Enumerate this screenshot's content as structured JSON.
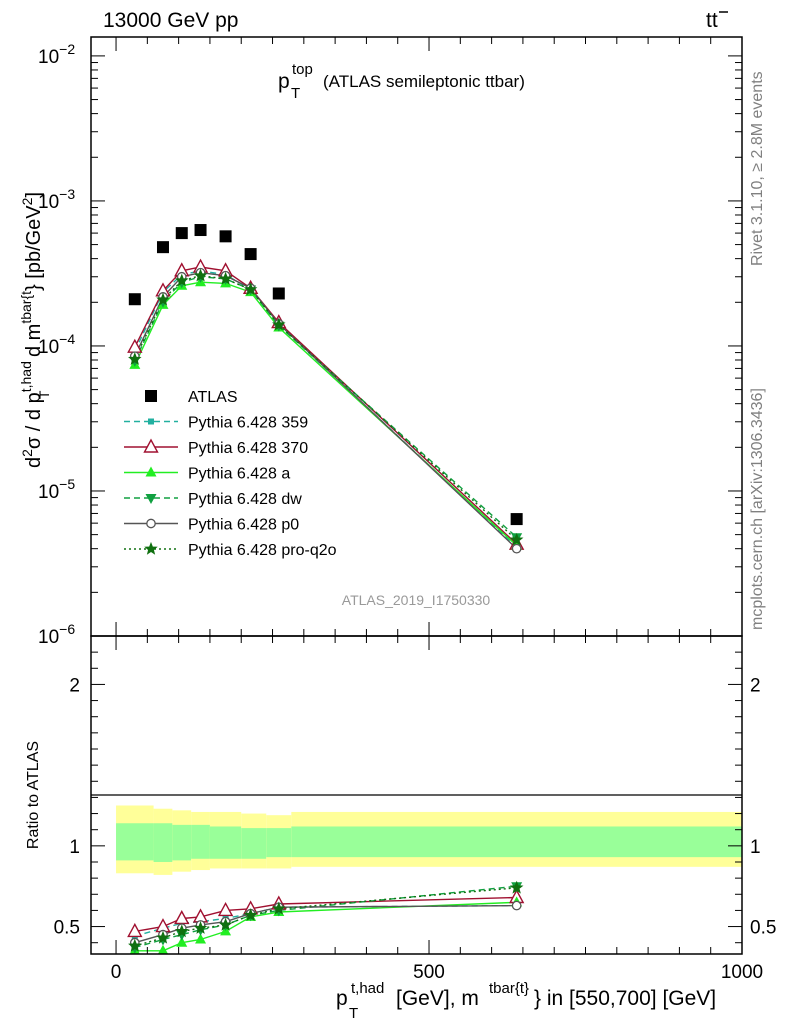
{
  "header": {
    "left": "13000 GeV pp",
    "right_base": "t",
    "right_bar": "t"
  },
  "side_labels": {
    "rivet": "Rivet 3.1.10, ≥ 2.8M events",
    "mcplots": "mcplots.cern.ch [arXiv:1306.3436]"
  },
  "colors": {
    "band_outer": "#ffff99",
    "band_inner": "#99ff99",
    "atlas": "#000000",
    "p359": "#22b0a0",
    "p370": "#a01030",
    "pa": "#22ee22",
    "pdw": "#10a040",
    "pp0": "#555555",
    "pproq2o": "#107010"
  },
  "chart_data": [
    {
      "type": "scatter",
      "panel": "main",
      "title_main": "p",
      "title_sup": "top",
      "title_sub": "T",
      "title_rest": "(ATLAS semileptonic ttbar)",
      "watermark": "ATLAS_2019_I1750330",
      "ylabel": "d²σ / d p_T^{t,had} d m^{tbar{t}} [pb/GeV²]",
      "yscale": "log",
      "ylim": [
        1e-06,
        0.0135
      ],
      "xlim": [
        -40,
        1000
      ],
      "y_tick_labels": [
        {
          "base": "10",
          "exp": "−2",
          "v": 0.01
        },
        {
          "base": "10",
          "exp": "−3",
          "v": 0.001
        },
        {
          "base": "10",
          "exp": "−4",
          "v": 0.0001
        },
        {
          "base": "10",
          "exp": "−5",
          "v": 1e-05
        },
        {
          "base": "10",
          "exp": "−6",
          "v": 1e-06
        }
      ],
      "legend_position": "center-left",
      "x": [
        30,
        75,
        105,
        135,
        175,
        215,
        260,
        640
      ],
      "series": [
        {
          "name": "ATLAS",
          "key": "atlas",
          "marker": "square",
          "values": [
            0.00021,
            0.00048,
            0.0006,
            0.00063,
            0.00057,
            0.00043,
            0.00023,
            6.4e-06
          ]
        },
        {
          "name": "Pythia 6.428 359",
          "key": "p359",
          "marker": "smallsquare",
          "dash": "6,4",
          "values": [
            9.2e-05,
            0.000235,
            0.00031,
            0.00033,
            0.00031,
            0.000245,
            0.00014,
            4.1e-06
          ]
        },
        {
          "name": "Pythia 6.428 370",
          "key": "p370",
          "marker": "triangle-open",
          "dash": "",
          "values": [
            9.8e-05,
            0.00024,
            0.00033,
            0.00035,
            0.00033,
            0.00025,
            0.000145,
            4.3e-06
          ]
        },
        {
          "name": "Pythia 6.428 a",
          "key": "pa",
          "marker": "triangle-filled",
          "dash": "",
          "values": [
            7.4e-05,
            0.000192,
            0.00026,
            0.000275,
            0.00027,
            0.000235,
            0.000134,
            4.2e-06
          ]
        },
        {
          "name": "Pythia 6.428 dw",
          "key": "pdw",
          "marker": "triangle-down",
          "dash": "6,4",
          "values": [
            7.9e-05,
            0.000202,
            0.000275,
            0.0003,
            0.00029,
            0.000245,
            0.000138,
            4.8e-06
          ]
        },
        {
          "name": "Pythia 6.428 p0",
          "key": "pp0",
          "marker": "circle-open",
          "dash": "",
          "values": [
            8.5e-05,
            0.000218,
            0.0003,
            0.00032,
            0.000305,
            0.00025,
            0.000142,
            4e-06
          ]
        },
        {
          "name": "Pythia 6.428 pro-q2o",
          "key": "pproq2o",
          "marker": "star",
          "dash": "2,3",
          "values": [
            8.1e-05,
            0.000208,
            0.000282,
            0.000305,
            0.00029,
            0.000245,
            0.00014,
            4.6e-06
          ]
        }
      ]
    },
    {
      "type": "line",
      "panel": "ratio",
      "ylabel": "Ratio to ATLAS",
      "ylim": [
        0.33,
        2.3
      ],
      "xlim": [
        -40,
        1000
      ],
      "y_tick_labels": [
        {
          "label": "0.5",
          "v": 0.5
        },
        {
          "label": "1",
          "v": 1
        },
        {
          "label": "2",
          "v": 2
        }
      ],
      "x_tick_labels": [
        {
          "label": "0",
          "v": 0
        },
        {
          "label": "500",
          "v": 500
        },
        {
          "label": "1000",
          "v": 1000
        }
      ],
      "xlabel_main": "p",
      "xlabel_sup": "t,had",
      "xlabel_sub": "T",
      "xlabel_mid": "[GeV], m",
      "xlabel_sup2": "tbar{t}",
      "xlabel_end": "} in [550,700] [GeV]",
      "bands": {
        "edges": [
          0,
          60,
          90,
          120,
          150,
          200,
          240,
          280,
          1000
        ],
        "outer_lo": [
          0.83,
          0.82,
          0.84,
          0.85,
          0.86,
          0.86,
          0.86,
          0.87
        ],
        "outer_hi": [
          1.25,
          1.23,
          1.22,
          1.21,
          1.21,
          1.2,
          1.19,
          1.21
        ],
        "inner_lo": [
          0.91,
          0.9,
          0.91,
          0.92,
          0.92,
          0.92,
          0.93,
          0.93
        ],
        "inner_hi": [
          1.14,
          1.14,
          1.13,
          1.13,
          1.12,
          1.11,
          1.11,
          1.12
        ]
      },
      "x": [
        30,
        75,
        105,
        135,
        175,
        215,
        260,
        640
      ],
      "series": [
        {
          "name": "Pythia 6.428 359",
          "key": "p359",
          "marker": "smallsquare",
          "dash": "6,4",
          "values": [
            0.44,
            0.49,
            0.52,
            0.53,
            0.55,
            0.58,
            0.62,
            0.63
          ]
        },
        {
          "name": "Pythia 6.428 370",
          "key": "p370",
          "marker": "triangle-open",
          "dash": "",
          "values": [
            0.47,
            0.5,
            0.55,
            0.56,
            0.6,
            0.61,
            0.64,
            0.68
          ]
        },
        {
          "name": "Pythia 6.428 a",
          "key": "pa",
          "marker": "triangle-filled",
          "dash": "",
          "values": [
            0.35,
            0.35,
            0.4,
            0.42,
            0.47,
            0.56,
            0.59,
            0.65
          ]
        },
        {
          "name": "Pythia 6.428 dw",
          "key": "pdw",
          "marker": "triangle-down",
          "dash": "6,4",
          "values": [
            0.37,
            0.42,
            0.45,
            0.48,
            0.51,
            0.57,
            0.6,
            0.75
          ]
        },
        {
          "name": "Pythia 6.428 p0",
          "key": "pp0",
          "marker": "circle-open",
          "dash": "",
          "values": [
            0.4,
            0.45,
            0.49,
            0.51,
            0.53,
            0.58,
            0.62,
            0.63
          ]
        },
        {
          "name": "Pythia 6.428 pro-q2o",
          "key": "pproq2o",
          "marker": "star",
          "dash": "2,3",
          "values": [
            0.38,
            0.43,
            0.47,
            0.49,
            0.51,
            0.57,
            0.61,
            0.74
          ]
        }
      ]
    }
  ]
}
